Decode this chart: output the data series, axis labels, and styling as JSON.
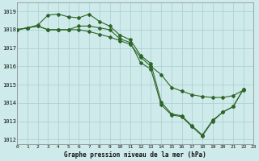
{
  "title": "Graphe pression niveau de la mer (hPa)",
  "bg_color": "#ceeaea",
  "grid_color": "#aacece",
  "line_color": "#2d6628",
  "xlim": [
    0,
    23
  ],
  "ylim": [
    1011.75,
    1019.5
  ],
  "yticks": [
    1012,
    1013,
    1014,
    1015,
    1016,
    1017,
    1018,
    1019
  ],
  "xticks": [
    0,
    1,
    2,
    3,
    4,
    5,
    6,
    7,
    8,
    9,
    10,
    11,
    12,
    13,
    14,
    15,
    16,
    17,
    18,
    19,
    20,
    21,
    22,
    23
  ],
  "line1_x": [
    0,
    1,
    2,
    3,
    4,
    5,
    6,
    7,
    8,
    9,
    10,
    11,
    12,
    13,
    14,
    15,
    16,
    17,
    18,
    19,
    20,
    21,
    22
  ],
  "line1_y": [
    1018.0,
    1018.1,
    1018.2,
    1018.0,
    1018.0,
    1018.0,
    1018.0,
    1017.9,
    1017.75,
    1017.6,
    1017.4,
    1017.2,
    1016.5,
    1016.0,
    1015.55,
    1014.85,
    1014.65,
    1014.45,
    1014.35,
    1014.3,
    1014.3,
    1014.4,
    1014.7
  ],
  "line2_x": [
    0,
    1,
    2,
    3,
    4,
    5,
    6,
    7,
    8,
    9,
    10,
    11,
    12,
    13,
    14,
    15,
    16,
    17,
    18,
    19,
    20,
    21,
    22
  ],
  "line2_y": [
    1018.0,
    1018.1,
    1018.25,
    1018.8,
    1018.85,
    1018.7,
    1018.65,
    1018.85,
    1018.45,
    1018.2,
    1017.7,
    1017.45,
    1016.6,
    1016.15,
    1014.05,
    1013.4,
    1013.3,
    1012.75,
    1012.25,
    1013.05,
    1013.5,
    1013.8,
    1014.75
  ],
  "line3_x": [
    0,
    1,
    2,
    3,
    4,
    5,
    6,
    7,
    8,
    9,
    10,
    11,
    12,
    13,
    14,
    15,
    16,
    17,
    18,
    19,
    20,
    21,
    22
  ],
  "line3_y": [
    1018.0,
    1018.1,
    1018.2,
    1018.0,
    1018.0,
    1018.0,
    1018.2,
    1018.2,
    1018.1,
    1018.0,
    1017.5,
    1017.3,
    1016.2,
    1015.85,
    1013.9,
    1013.35,
    1013.25,
    1012.7,
    1012.2,
    1013.0,
    1013.5,
    1013.8,
    1014.75
  ]
}
